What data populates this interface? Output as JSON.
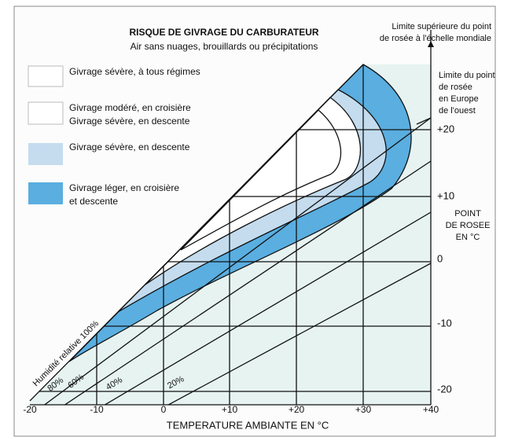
{
  "title": "RISQUE DE GIVRAGE DU CARBURATEUR",
  "subtitle": "Air sans nuages, brouillards ou précipitations",
  "legend": [
    {
      "lines": [
        "Givrage sévère, à tous régimes"
      ]
    },
    {
      "lines": [
        "Givrage modéré, en croisière",
        "Givrage sévère, en descente"
      ]
    },
    {
      "lines": [
        "Givrage sévère, en descente"
      ]
    },
    {
      "lines": [
        "Givrage léger, en croisière",
        "et descente"
      ]
    }
  ],
  "x_axis": {
    "label": "TEMPERATURE AMBIANTE EN °C",
    "ticks": [
      "-20",
      "-10",
      "0",
      "+10",
      "+20",
      "+30",
      "+40"
    ]
  },
  "y_axis": {
    "label": [
      "POINT",
      "DE ROSEE",
      "EN °C"
    ],
    "ticks": [
      "+20",
      "+10",
      "0",
      "-10",
      "-20"
    ]
  },
  "annotations": {
    "world_limit": [
      "Limite supérieure du point",
      "de rosée à l'échelle mondiale"
    ],
    "europe_limit": [
      "Limite du point",
      "de rosée",
      "en Europe",
      "de l'ouest"
    ]
  },
  "humidity_labels": [
    "Humidité relative 100%",
    "80%",
    "60%",
    "40%",
    "20%"
  ]
}
